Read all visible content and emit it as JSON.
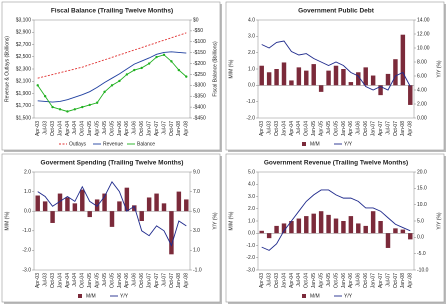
{
  "chart_data": [
    {
      "type": "line",
      "title": "Fiscal Balance (Trailing Twelve Months)",
      "y_label": "Revenue & Outlays ($billions)",
      "y2_label": "Fiscal Balance ($billions)",
      "categories": [
        "Apr-03",
        "Jul-03",
        "Oct-03",
        "Jan-04",
        "Apr-04",
        "Jul-04",
        "Oct-04",
        "Jan-05",
        "Apr-05",
        "Jul-05",
        "Oct-05",
        "Jan-06",
        "Apr-06",
        "Jul-06",
        "Oct-06",
        "Jan-07",
        "Apr-07",
        "Jul-07",
        "Oct-07",
        "Jan-08",
        "Apr-08"
      ],
      "series": [
        {
          "name": "Outlays",
          "color": "#e03030",
          "style": "dashed",
          "values": [
            2150,
            2180,
            2210,
            2240,
            2270,
            2300,
            2330,
            2370,
            2410,
            2450,
            2490,
            2530,
            2570,
            2610,
            2650,
            2690,
            2730,
            2770,
            2810,
            2850,
            2890
          ]
        },
        {
          "name": "Revenue",
          "color": "#2040a0",
          "values": [
            1780,
            1770,
            1760,
            1770,
            1800,
            1840,
            1880,
            1930,
            2000,
            2080,
            2150,
            2220,
            2300,
            2380,
            2430,
            2480,
            2540,
            2570,
            2580,
            2570,
            2560
          ]
        },
        {
          "name": "Balance",
          "color": "#20b020",
          "axis": "y2",
          "markers": true,
          "values": [
            -300,
            -350,
            -400,
            -410,
            -420,
            -410,
            -400,
            -390,
            -380,
            -330,
            -300,
            -280,
            -250,
            -230,
            -220,
            -200,
            -170,
            -160,
            -190,
            -230,
            -260
          ]
        }
      ],
      "ylim": [
        1500,
        3100
      ],
      "yticks": [
        {
          "value": 1500,
          "label": "$1,500"
        },
        {
          "value": 1700,
          "label": "$1,700"
        },
        {
          "value": 1900,
          "label": "$1,900"
        },
        {
          "value": 2100,
          "label": "$2,100"
        },
        {
          "value": 2300,
          "label": "$2,300"
        },
        {
          "value": 2500,
          "label": "$2,500"
        },
        {
          "value": 2700,
          "label": "$2,700"
        },
        {
          "value": 2900,
          "label": "$2,900"
        },
        {
          "value": 3100,
          "label": "$3,100"
        }
      ],
      "y2lim": [
        -450,
        0
      ],
      "y2ticks": [
        {
          "value": -450,
          "label": "-$450"
        },
        {
          "value": -400,
          "label": "-$400"
        },
        {
          "value": -350,
          "label": "-$350"
        },
        {
          "value": -300,
          "label": "-$300"
        },
        {
          "value": -250,
          "label": "-$250"
        },
        {
          "value": -200,
          "label": "-$200"
        },
        {
          "value": -150,
          "label": "-$150"
        },
        {
          "value": -100,
          "label": "-$100"
        },
        {
          "value": -50,
          "label": "-$50"
        },
        {
          "value": 0,
          "label": "$0"
        }
      ]
    },
    {
      "type": "bar",
      "title": "Government Public Debt",
      "y_label": "M/M (%)",
      "y2_label": "Y/Y (%)",
      "categories": [
        "Apr-03",
        "Jul-03",
        "Oct-03",
        "Jan-04",
        "Apr-04",
        "Jul-04",
        "Oct-04",
        "Jan-05",
        "Apr-05",
        "Jul-05",
        "Oct-05",
        "Jan-06",
        "Apr-06",
        "Jul-06",
        "Oct-06",
        "Jan-07",
        "Apr-07",
        "Jul-07",
        "Oct-07",
        "Jan-08",
        "Apr-08"
      ],
      "series": [
        {
          "name": "M/M",
          "color": "#7b2a3a",
          "values": [
            1.2,
            0.8,
            1.0,
            1.4,
            0.3,
            1.1,
            0.9,
            1.3,
            -0.4,
            0.9,
            1.2,
            1.0,
            0.2,
            0.8,
            1.1,
            0.6,
            -0.6,
            0.7,
            1.6,
            3.1,
            -1.2
          ]
        },
        {
          "name": "Y/Y",
          "color": "#1f2a8c",
          "type": "line",
          "axis": "y2",
          "values": [
            10.5,
            10.0,
            10.8,
            11.0,
            9.5,
            9.0,
            9.2,
            8.5,
            8.0,
            7.5,
            8.0,
            7.5,
            6.5,
            6.0,
            4.5,
            4.0,
            4.5,
            4.0,
            6.0,
            6.5,
            4.5
          ]
        }
      ],
      "ylim": [
        -2,
        4
      ],
      "yticks": [
        {
          "value": -2,
          "label": "-2.0"
        },
        {
          "value": -1,
          "label": "-1.0"
        },
        {
          "value": 0,
          "label": "0.0"
        },
        {
          "value": 1,
          "label": "1.0"
        },
        {
          "value": 2,
          "label": "2.0"
        },
        {
          "value": 3,
          "label": "3.0"
        },
        {
          "value": 4,
          "label": "4.0"
        }
      ],
      "y2lim": [
        0,
        14
      ],
      "y2ticks": [
        {
          "value": 0,
          "label": "0.00"
        },
        {
          "value": 2,
          "label": "2.00"
        },
        {
          "value": 4,
          "label": "4.00"
        },
        {
          "value": 6,
          "label": "6.00"
        },
        {
          "value": 8,
          "label": "8.00"
        },
        {
          "value": 10,
          "label": "10.00"
        },
        {
          "value": 12,
          "label": "12.00"
        },
        {
          "value": 14,
          "label": "14.00"
        }
      ]
    },
    {
      "type": "bar",
      "title": "Goverment Spending (Trailing Twelve Months)",
      "y_label": "M/M (%)",
      "y2_label": "Y/Y (%)",
      "categories": [
        "Apr-03",
        "Jul-03",
        "Oct-03",
        "Jan-04",
        "Apr-04",
        "Jul-04",
        "Oct-04",
        "Jan-05",
        "Apr-05",
        "Jul-05",
        "Oct-05",
        "Jan-06",
        "Apr-06",
        "Jul-06",
        "Oct-06",
        "Jan-07",
        "Apr-07",
        "Jul-07",
        "Oct-07",
        "Jan-08",
        "Apr-08"
      ],
      "series": [
        {
          "name": "M/M",
          "color": "#7b2a3a",
          "values": [
            0.8,
            0.5,
            -0.6,
            0.9,
            0.7,
            0.4,
            1.1,
            -0.3,
            0.6,
            0.9,
            -0.8,
            0.5,
            1.2,
            0.3,
            -0.5,
            0.7,
            0.9,
            0.4,
            -2.2,
            1.0,
            0.6
          ]
        },
        {
          "name": "Y/Y",
          "color": "#1f2a8c",
          "type": "line",
          "axis": "y2",
          "values": [
            7.0,
            6.5,
            5.5,
            6.0,
            6.5,
            6.0,
            7.5,
            6.0,
            5.5,
            6.5,
            8.0,
            7.0,
            5.0,
            5.5,
            3.0,
            2.5,
            3.5,
            3.0,
            1.5,
            4.0,
            3.5
          ]
        }
      ],
      "ylim": [
        -3,
        2
      ],
      "yticks": [
        {
          "value": -3,
          "label": "-3.0"
        },
        {
          "value": -2,
          "label": "-2.0"
        },
        {
          "value": -1,
          "label": "-1.0"
        },
        {
          "value": 0,
          "label": "0.0"
        },
        {
          "value": 1,
          "label": "1.0"
        },
        {
          "value": 2,
          "label": "2.0"
        }
      ],
      "y2lim": [
        -1,
        9
      ],
      "y2ticks": [
        {
          "value": -1,
          "label": "-1.0"
        },
        {
          "value": 1,
          "label": "1.0"
        },
        {
          "value": 3,
          "label": "3.0"
        },
        {
          "value": 5,
          "label": "5.0"
        },
        {
          "value": 7,
          "label": "7.0"
        },
        {
          "value": 9,
          "label": "9.0"
        }
      ]
    },
    {
      "type": "bar",
      "title": "Government Revenue (Trailing Twelve Months)",
      "y_label": "M/M (%)",
      "y2_label": "Y/Y (%)",
      "categories": [
        "Apr-03",
        "Jul-03",
        "Oct-03",
        "Jan-04",
        "Apr-04",
        "Jul-04",
        "Oct-04",
        "Jan-05",
        "Apr-05",
        "Jul-05",
        "Oct-05",
        "Jan-06",
        "Apr-06",
        "Jul-06",
        "Oct-06",
        "Jan-07",
        "Apr-07",
        "Jul-07",
        "Oct-07",
        "Jan-08",
        "Apr-08"
      ],
      "series": [
        {
          "name": "M/M",
          "color": "#7b2a3a",
          "values": [
            0.2,
            -0.4,
            0.6,
            0.8,
            1.0,
            1.2,
            1.4,
            1.6,
            1.8,
            1.5,
            1.2,
            1.0,
            1.4,
            0.8,
            0.6,
            1.8,
            1.0,
            -1.2,
            0.4,
            0.3,
            -0.5
          ]
        },
        {
          "name": "Y/Y",
          "color": "#1f2a8c",
          "type": "line",
          "axis": "y2",
          "values": [
            -3,
            -4,
            -2,
            2,
            5,
            8,
            11,
            13,
            14.5,
            14.5,
            13,
            12,
            12,
            11,
            9,
            9,
            8,
            6,
            4,
            3,
            2
          ]
        }
      ],
      "ylim": [
        -3,
        5
      ],
      "yticks": [
        {
          "value": -3,
          "label": "-3.0"
        },
        {
          "value": -2,
          "label": "-2.0"
        },
        {
          "value": -1,
          "label": "-1.0"
        },
        {
          "value": 0,
          "label": "0.0"
        },
        {
          "value": 1,
          "label": "1.0"
        },
        {
          "value": 2,
          "label": "2.0"
        },
        {
          "value": 3,
          "label": "3.0"
        },
        {
          "value": 4,
          "label": "4.0"
        },
        {
          "value": 5,
          "label": "5.0"
        }
      ],
      "y2lim": [
        -10,
        20
      ],
      "y2ticks": [
        {
          "value": -10,
          "label": "-10.0"
        },
        {
          "value": -5,
          "label": "-5.0"
        },
        {
          "value": 0,
          "label": "0.0"
        },
        {
          "value": 5,
          "label": "5.0"
        },
        {
          "value": 10,
          "label": "10.0"
        },
        {
          "value": 15,
          "label": "15.0"
        },
        {
          "value": 20,
          "label": "20.0"
        }
      ]
    }
  ]
}
